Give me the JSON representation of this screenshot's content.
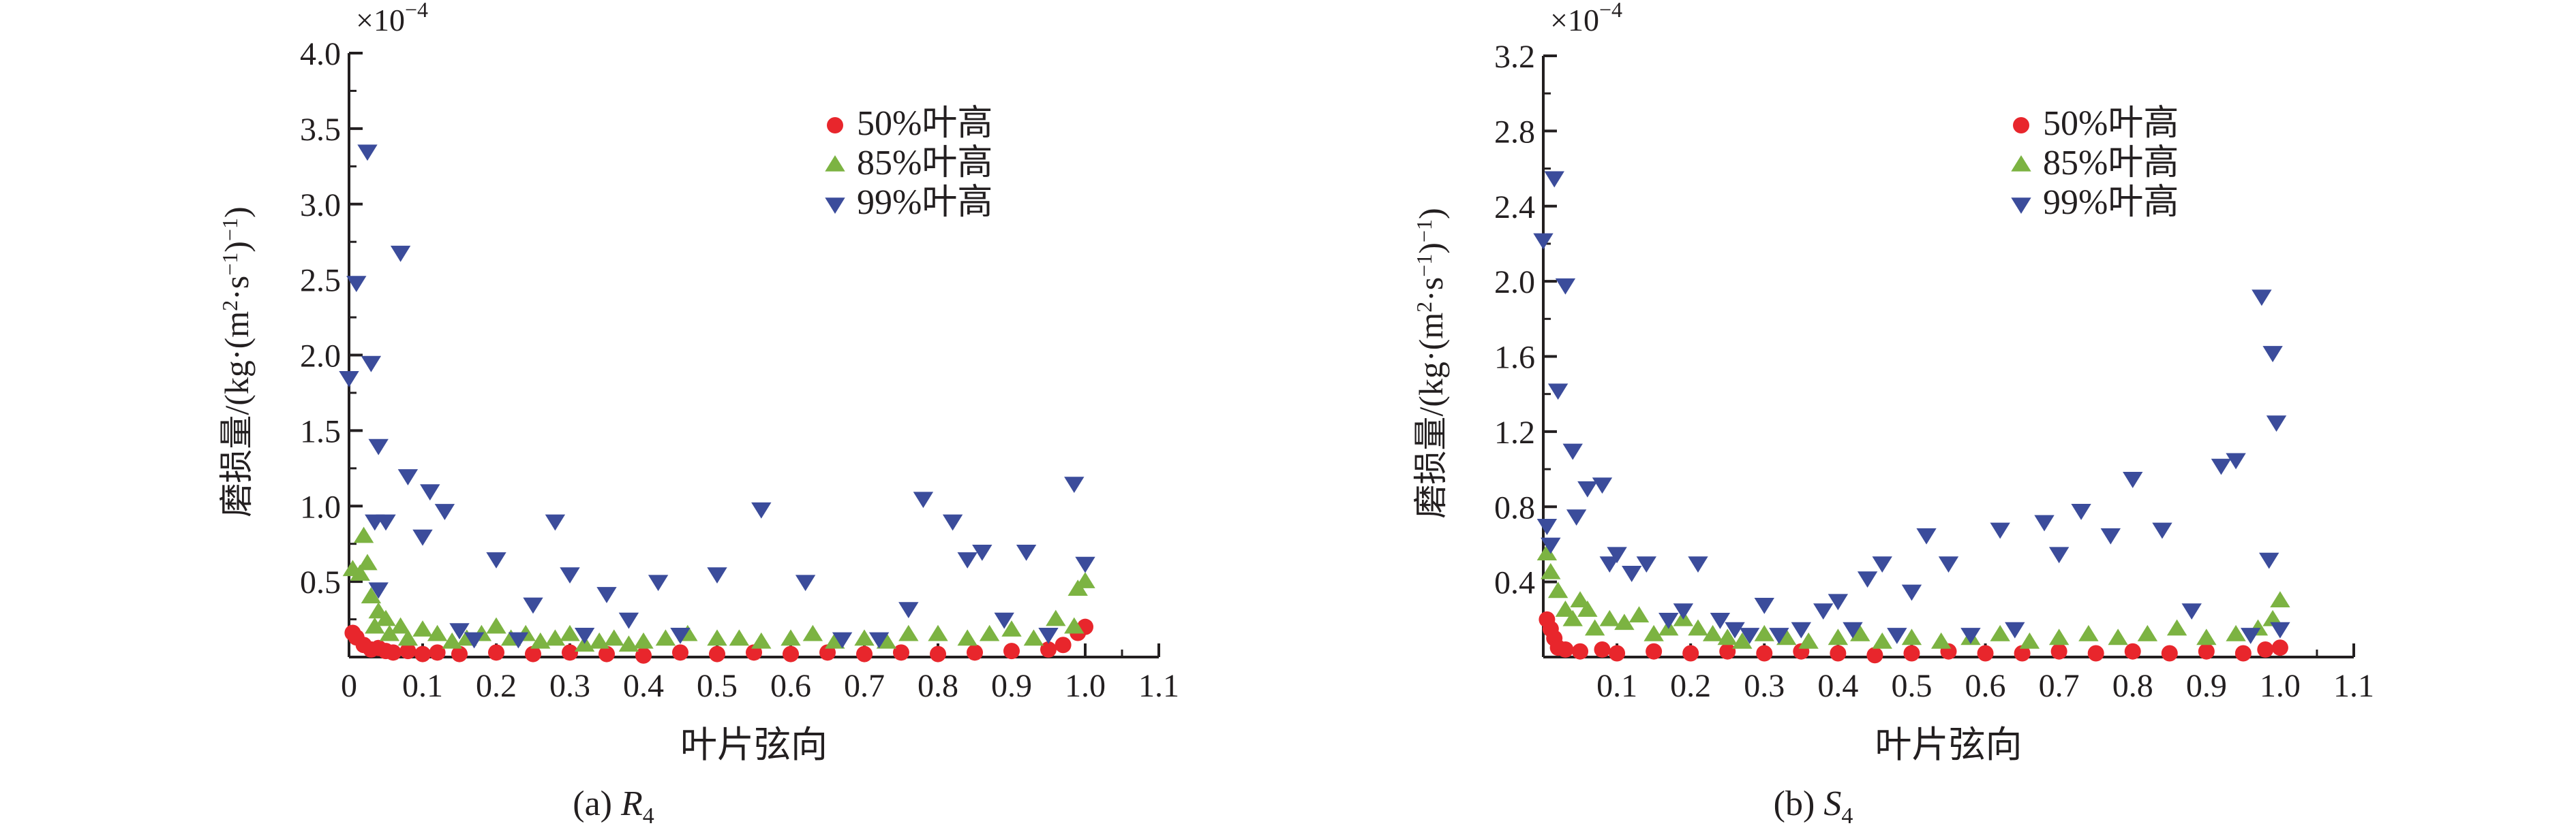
{
  "x_axis_label": "叶片弦向",
  "y_axis_label": "磨损量/(kg·(m²·s⁻¹)⁻¹)",
  "y_axis_label_parts": [
    "磨损量/(kg·(m",
    "2",
    "·s",
    "−1",
    ")",
    "−1",
    ")"
  ],
  "scale_note": "×10",
  "scale_exponent": "−4",
  "colors": {
    "s50": "#e8262c",
    "s85": "#7cb342",
    "s99": "#3b4c9b",
    "axis": "#231f20"
  },
  "legend": [
    "50%叶高",
    "85%叶高",
    "99%叶高"
  ],
  "chart_data": [
    {
      "type": "scatter",
      "caption_prefix": "(a) ",
      "caption_var": "R",
      "caption_sub": "4",
      "xlim": [
        0,
        1.1
      ],
      "ylim": [
        0,
        4.0
      ],
      "x_ticks": [
        "0",
        "0.1",
        "0.2",
        "0.3",
        "0.4",
        "0.5",
        "0.6",
        "0.7",
        "0.8",
        "0.9",
        "1.0",
        "1.1"
      ],
      "y_ticks": [
        "0.5",
        "1.0",
        "1.5",
        "2.0",
        "2.5",
        "3.0",
        "3.5",
        "4.0"
      ],
      "series": [
        {
          "name": "50%叶高",
          "marker": "circle",
          "points": [
            [
              0.005,
              0.16
            ],
            [
              0.01,
              0.13
            ],
            [
              0.02,
              0.08
            ],
            [
              0.03,
              0.05
            ],
            [
              0.04,
              0.06
            ],
            [
              0.05,
              0.04
            ],
            [
              0.06,
              0.03
            ],
            [
              0.08,
              0.04
            ],
            [
              0.1,
              0.02
            ],
            [
              0.12,
              0.03
            ],
            [
              0.15,
              0.02
            ],
            [
              0.2,
              0.03
            ],
            [
              0.25,
              0.02
            ],
            [
              0.3,
              0.03
            ],
            [
              0.35,
              0.02
            ],
            [
              0.4,
              0.01
            ],
            [
              0.45,
              0.03
            ],
            [
              0.5,
              0.02
            ],
            [
              0.55,
              0.03
            ],
            [
              0.6,
              0.02
            ],
            [
              0.65,
              0.03
            ],
            [
              0.7,
              0.02
            ],
            [
              0.75,
              0.03
            ],
            [
              0.8,
              0.02
            ],
            [
              0.85,
              0.03
            ],
            [
              0.9,
              0.04
            ],
            [
              0.95,
              0.05
            ],
            [
              0.97,
              0.08
            ],
            [
              0.99,
              0.16
            ],
            [
              1.0,
              0.2
            ]
          ]
        },
        {
          "name": "85%叶高",
          "marker": "triangle-up",
          "points": [
            [
              0.005,
              0.58
            ],
            [
              0.015,
              0.55
            ],
            [
              0.02,
              0.8
            ],
            [
              0.025,
              0.62
            ],
            [
              0.03,
              0.4
            ],
            [
              0.035,
              0.2
            ],
            [
              0.04,
              0.3
            ],
            [
              0.05,
              0.25
            ],
            [
              0.055,
              0.15
            ],
            [
              0.07,
              0.2
            ],
            [
              0.08,
              0.12
            ],
            [
              0.1,
              0.18
            ],
            [
              0.12,
              0.15
            ],
            [
              0.14,
              0.1
            ],
            [
              0.16,
              0.12
            ],
            [
              0.18,
              0.15
            ],
            [
              0.2,
              0.2
            ],
            [
              0.22,
              0.12
            ],
            [
              0.24,
              0.15
            ],
            [
              0.26,
              0.1
            ],
            [
              0.28,
              0.12
            ],
            [
              0.3,
              0.15
            ],
            [
              0.32,
              0.08
            ],
            [
              0.34,
              0.1
            ],
            [
              0.36,
              0.12
            ],
            [
              0.38,
              0.08
            ],
            [
              0.4,
              0.1
            ],
            [
              0.43,
              0.12
            ],
            [
              0.46,
              0.15
            ],
            [
              0.5,
              0.12
            ],
            [
              0.53,
              0.12
            ],
            [
              0.56,
              0.1
            ],
            [
              0.6,
              0.12
            ],
            [
              0.63,
              0.15
            ],
            [
              0.66,
              0.1
            ],
            [
              0.7,
              0.12
            ],
            [
              0.73,
              0.1
            ],
            [
              0.76,
              0.15
            ],
            [
              0.8,
              0.15
            ],
            [
              0.84,
              0.12
            ],
            [
              0.87,
              0.15
            ],
            [
              0.9,
              0.18
            ],
            [
              0.93,
              0.12
            ],
            [
              0.96,
              0.25
            ],
            [
              0.985,
              0.2
            ],
            [
              0.99,
              0.45
            ],
            [
              1.0,
              0.5
            ]
          ]
        },
        {
          "name": "99%叶高",
          "marker": "triangle-down",
          "points": [
            [
              0.0,
              1.85
            ],
            [
              0.01,
              2.48
            ],
            [
              0.025,
              3.35
            ],
            [
              0.03,
              1.95
            ],
            [
              0.04,
              0.45
            ],
            [
              0.04,
              1.4
            ],
            [
              0.035,
              0.9
            ],
            [
              0.05,
              0.9
            ],
            [
              0.07,
              2.68
            ],
            [
              0.08,
              1.2
            ],
            [
              0.1,
              0.8
            ],
            [
              0.11,
              1.1
            ],
            [
              0.13,
              0.97
            ],
            [
              0.15,
              0.18
            ],
            [
              0.17,
              0.12
            ],
            [
              0.2,
              0.65
            ],
            [
              0.23,
              0.12
            ],
            [
              0.25,
              0.35
            ],
            [
              0.28,
              0.9
            ],
            [
              0.3,
              0.55
            ],
            [
              0.32,
              0.15
            ],
            [
              0.35,
              0.42
            ],
            [
              0.38,
              0.25
            ],
            [
              0.42,
              0.5
            ],
            [
              0.45,
              0.15
            ],
            [
              0.5,
              0.55
            ],
            [
              0.56,
              0.98
            ],
            [
              0.62,
              0.5
            ],
            [
              0.67,
              0.12
            ],
            [
              0.72,
              0.12
            ],
            [
              0.76,
              0.32
            ],
            [
              0.78,
              1.05
            ],
            [
              0.82,
              0.9
            ],
            [
              0.84,
              0.65
            ],
            [
              0.86,
              0.7
            ],
            [
              0.89,
              0.25
            ],
            [
              0.92,
              0.7
            ],
            [
              0.95,
              0.15
            ],
            [
              0.985,
              1.15
            ],
            [
              1.0,
              0.62
            ]
          ]
        }
      ]
    },
    {
      "type": "scatter",
      "caption_prefix": "(b) ",
      "caption_var": "S",
      "caption_sub": "4",
      "xlim": [
        0,
        1.1
      ],
      "ylim": [
        0,
        3.2
      ],
      "x_ticks": [
        "0.1",
        "0.2",
        "0.3",
        "0.4",
        "0.5",
        "0.6",
        "0.7",
        "0.8",
        "0.9",
        "1.0",
        "1.1"
      ],
      "y_ticks": [
        "0.4",
        "0.8",
        "1.2",
        "1.6",
        "2.0",
        "2.4",
        "2.8",
        "3.2"
      ],
      "series": [
        {
          "name": "50%叶高",
          "marker": "circle",
          "points": [
            [
              0.005,
              0.2
            ],
            [
              0.01,
              0.15
            ],
            [
              0.015,
              0.1
            ],
            [
              0.02,
              0.05
            ],
            [
              0.03,
              0.04
            ],
            [
              0.05,
              0.03
            ],
            [
              0.08,
              0.04
            ],
            [
              0.1,
              0.02
            ],
            [
              0.15,
              0.03
            ],
            [
              0.2,
              0.02
            ],
            [
              0.25,
              0.03
            ],
            [
              0.3,
              0.02
            ],
            [
              0.35,
              0.03
            ],
            [
              0.4,
              0.02
            ],
            [
              0.45,
              0.01
            ],
            [
              0.5,
              0.02
            ],
            [
              0.55,
              0.03
            ],
            [
              0.6,
              0.02
            ],
            [
              0.65,
              0.02
            ],
            [
              0.7,
              0.03
            ],
            [
              0.75,
              0.02
            ],
            [
              0.8,
              0.03
            ],
            [
              0.85,
              0.02
            ],
            [
              0.9,
              0.03
            ],
            [
              0.95,
              0.02
            ],
            [
              0.98,
              0.04
            ],
            [
              1.0,
              0.05
            ]
          ]
        },
        {
          "name": "85%叶高",
          "marker": "triangle-up",
          "points": [
            [
              0.005,
              0.55
            ],
            [
              0.01,
              0.45
            ],
            [
              0.02,
              0.35
            ],
            [
              0.03,
              0.25
            ],
            [
              0.04,
              0.2
            ],
            [
              0.05,
              0.3
            ],
            [
              0.06,
              0.25
            ],
            [
              0.07,
              0.15
            ],
            [
              0.09,
              0.2
            ],
            [
              0.11,
              0.18
            ],
            [
              0.13,
              0.22
            ],
            [
              0.15,
              0.12
            ],
            [
              0.17,
              0.15
            ],
            [
              0.19,
              0.2
            ],
            [
              0.21,
              0.15
            ],
            [
              0.23,
              0.12
            ],
            [
              0.25,
              0.1
            ],
            [
              0.27,
              0.08
            ],
            [
              0.3,
              0.12
            ],
            [
              0.33,
              0.1
            ],
            [
              0.36,
              0.08
            ],
            [
              0.4,
              0.1
            ],
            [
              0.43,
              0.12
            ],
            [
              0.46,
              0.08
            ],
            [
              0.5,
              0.1
            ],
            [
              0.54,
              0.08
            ],
            [
              0.58,
              0.1
            ],
            [
              0.62,
              0.12
            ],
            [
              0.66,
              0.08
            ],
            [
              0.7,
              0.1
            ],
            [
              0.74,
              0.12
            ],
            [
              0.78,
              0.1
            ],
            [
              0.82,
              0.12
            ],
            [
              0.86,
              0.15
            ],
            [
              0.9,
              0.1
            ],
            [
              0.94,
              0.12
            ],
            [
              0.97,
              0.15
            ],
            [
              0.99,
              0.2
            ],
            [
              1.0,
              0.3
            ]
          ]
        },
        {
          "name": "99%叶高",
          "marker": "triangle-down",
          "points": [
            [
              0.0,
              2.22
            ],
            [
              0.005,
              0.7
            ],
            [
              0.01,
              0.6
            ],
            [
              0.015,
              2.55
            ],
            [
              0.02,
              1.42
            ],
            [
              0.03,
              1.98
            ],
            [
              0.04,
              1.1
            ],
            [
              0.045,
              0.75
            ],
            [
              0.06,
              0.9
            ],
            [
              0.08,
              0.92
            ],
            [
              0.09,
              0.5
            ],
            [
              0.1,
              0.55
            ],
            [
              0.12,
              0.45
            ],
            [
              0.14,
              0.5
            ],
            [
              0.17,
              0.2
            ],
            [
              0.19,
              0.25
            ],
            [
              0.21,
              0.5
            ],
            [
              0.24,
              0.2
            ],
            [
              0.26,
              0.15
            ],
            [
              0.28,
              0.12
            ],
            [
              0.3,
              0.28
            ],
            [
              0.32,
              0.12
            ],
            [
              0.35,
              0.15
            ],
            [
              0.38,
              0.25
            ],
            [
              0.4,
              0.3
            ],
            [
              0.42,
              0.15
            ],
            [
              0.44,
              0.42
            ],
            [
              0.46,
              0.5
            ],
            [
              0.48,
              0.12
            ],
            [
              0.5,
              0.35
            ],
            [
              0.52,
              0.65
            ],
            [
              0.55,
              0.5
            ],
            [
              0.58,
              0.12
            ],
            [
              0.62,
              0.68
            ],
            [
              0.64,
              0.15
            ],
            [
              0.68,
              0.72
            ],
            [
              0.7,
              0.55
            ],
            [
              0.73,
              0.78
            ],
            [
              0.77,
              0.65
            ],
            [
              0.8,
              0.95
            ],
            [
              0.84,
              0.68
            ],
            [
              0.88,
              0.25
            ],
            [
              0.92,
              1.02
            ],
            [
              0.94,
              1.05
            ],
            [
              0.96,
              0.12
            ],
            [
              0.975,
              1.92
            ],
            [
              0.985,
              0.52
            ],
            [
              0.99,
              1.62
            ],
            [
              0.995,
              1.25
            ],
            [
              1.0,
              0.15
            ]
          ]
        }
      ]
    }
  ]
}
